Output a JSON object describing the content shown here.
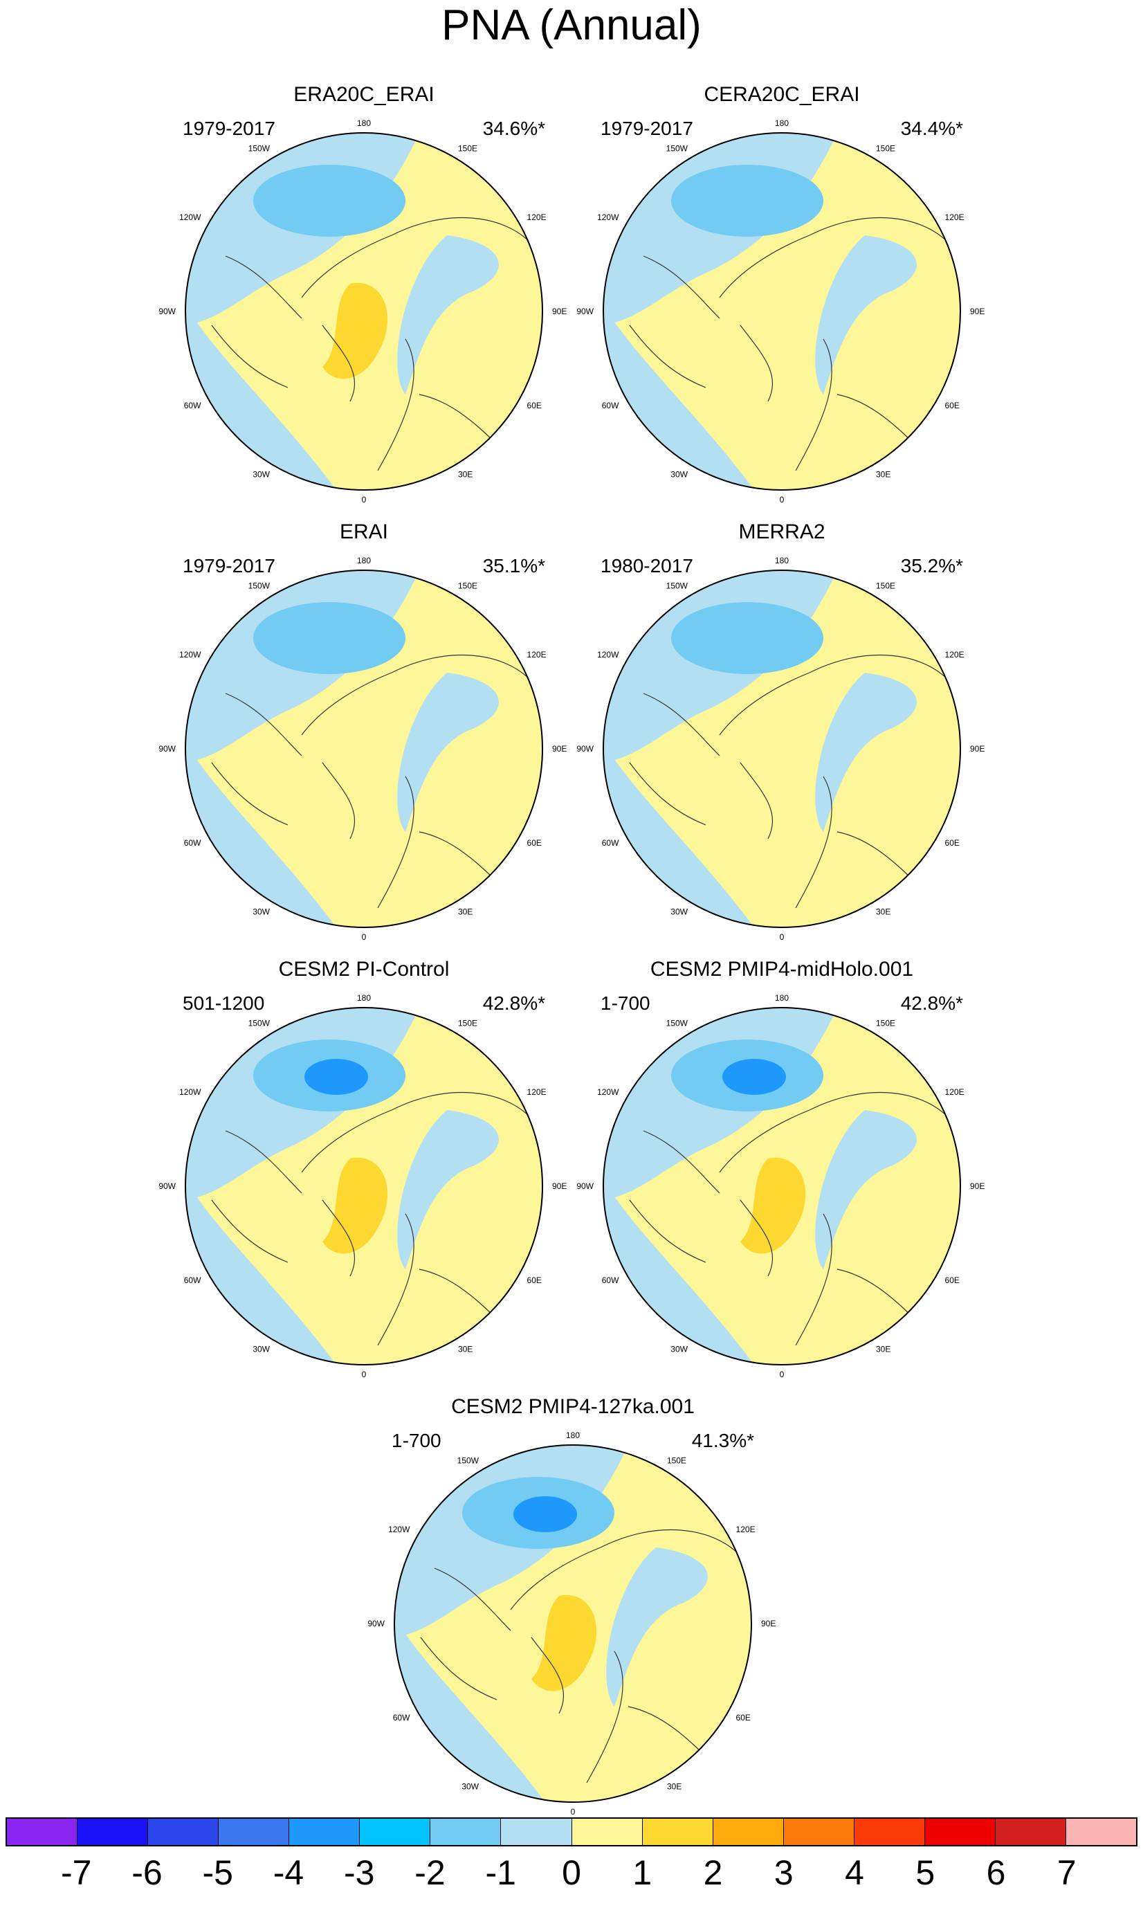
{
  "title": "PNA (Annual)",
  "longitude_labels": [
    "180",
    "150E",
    "120E",
    "90E",
    "60E",
    "30E",
    "0",
    "30W",
    "60W",
    "90W",
    "120W",
    "150W"
  ],
  "panels": [
    {
      "title": "ERA20C_ERAI",
      "period": "1979-2017",
      "variance": "34.6%*",
      "center_value": -2.2,
      "arctic_value": 1.8,
      "europe_value": -0.6
    },
    {
      "title": "CERA20C_ERAI",
      "period": "1979-2017",
      "variance": "34.4%*",
      "center_value": -2.1,
      "arctic_value": 0.6,
      "europe_value": -0.7
    },
    {
      "title": "ERAI",
      "period": "1979-2017",
      "variance": "35.1%*",
      "center_value": -2.2,
      "arctic_value": 0.7,
      "europe_value": -0.6
    },
    {
      "title": "MERRA2",
      "period": "1980-2017",
      "variance": "35.2%*",
      "center_value": -2.5,
      "arctic_value": 0.6,
      "europe_value": -0.7
    },
    {
      "title": "CESM2 PI-Control",
      "period": "501-1200",
      "variance": "42.8%*",
      "center_value": -3.2,
      "arctic_value": 1.9,
      "europe_value": -0.5
    },
    {
      "title": "CESM2 PMIP4-midHolo.001",
      "period": "1-700",
      "variance": "42.8%*",
      "center_value": -3.2,
      "arctic_value": 1.9,
      "europe_value": -0.5
    },
    {
      "title": "CESM2 PMIP4-127ka.001",
      "period": "1-700",
      "variance": "41.3%*",
      "center_value": -3.1,
      "arctic_value": 1.8,
      "europe_value": -0.5
    }
  ],
  "colorbar": {
    "labels": [
      "-7",
      "-6",
      "-5",
      "-4",
      "-3",
      "-2",
      "-1",
      "0",
      "1",
      "2",
      "3",
      "4",
      "5",
      "6",
      "7"
    ],
    "colors": [
      "#8a24f0",
      "#1a12f5",
      "#2a46ec",
      "#3a76ee",
      "#1e98fb",
      "#00c4fb",
      "#72cbf3",
      "#b3dff2",
      "#fdf79a",
      "#fcd830",
      "#fcaa0c",
      "#fc7a0c",
      "#fc3c08",
      "#ee0000",
      "#d21e1e",
      "#fbb4b4"
    ]
  }
}
